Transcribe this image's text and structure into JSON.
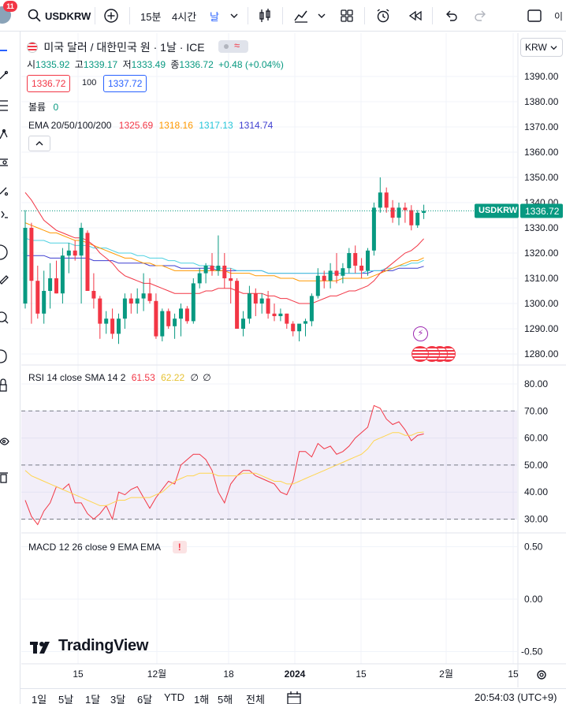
{
  "toolbar": {
    "notifications": "11",
    "symbol": "USDKRW",
    "interval_15m": "15분",
    "interval_4h": "4시간",
    "interval_day": "날",
    "corner": "이"
  },
  "legend": {
    "title": "미국 달러 / 대한민국 원 · 1날 · ICE",
    "open_label": "시",
    "open": "1335.92",
    "high_label": "고",
    "high": "1339.17",
    "low_label": "저",
    "low": "1333.49",
    "close_label": "종",
    "close": "1336.72",
    "change": "+0.48 (+0.04%)",
    "bid": "1336.72",
    "spread": "100",
    "ask": "1337.72",
    "volume_label": "볼륨",
    "volume_value": "0",
    "ema_label": "EMA 20/50/100/200",
    "ema20": "1325.69",
    "ema50": "1318.16",
    "ema100": "1317.13",
    "ema200": "1314.74"
  },
  "currency_select": "KRW",
  "price_tag": {
    "symbol": "USDKRW",
    "price": "1336.72"
  },
  "rsi": {
    "label": "RSI 14 close SMA 14 2",
    "rsi_value": "61.53",
    "sma_value": "62.22",
    "extra1": "∅",
    "extra2": "∅"
  },
  "macd": {
    "label": "MACD 12 26 close 9 EMA EMA",
    "warning": "!"
  },
  "watermark": "TradingView",
  "bottom": {
    "ranges": [
      "1일",
      "5날",
      "1달",
      "3달",
      "6달",
      "YTD",
      "1해",
      "5해",
      "전체"
    ],
    "clock": "20:54:03 (UTC+9)"
  },
  "colors": {
    "up": "#089981",
    "down": "#f23645",
    "ema20": "#f23645",
    "ema50": "#ff9800",
    "ema100": "#4dd0e1",
    "ema200": "#3f3fd0",
    "rsi": "#f23645",
    "rsi_sma": "#ffd54f",
    "rsi_band": "#7e57c2"
  },
  "chart_data": [
    {
      "type": "candlestick",
      "title": "미국 달러 / 대한민국 원 · 1날 · ICE",
      "y_ticks": [
        1390,
        1380,
        1370,
        1360,
        1350,
        1340,
        1330,
        1320,
        1310,
        1300,
        1290,
        1280
      ],
      "ylim": [
        1278,
        1397
      ],
      "x_ticks": [
        "15",
        "12월",
        "18",
        "2024",
        "15",
        "2월",
        "15"
      ],
      "last_price": 1336.72,
      "candles": [
        {
          "o": 1300,
          "h": 1337,
          "l": 1298,
          "c": 1330
        },
        {
          "o": 1330,
          "h": 1332,
          "l": 1292,
          "c": 1309
        },
        {
          "o": 1309,
          "h": 1315,
          "l": 1294,
          "c": 1296
        },
        {
          "o": 1296,
          "h": 1313,
          "l": 1292,
          "c": 1305
        },
        {
          "o": 1305,
          "h": 1316,
          "l": 1298,
          "c": 1310
        },
        {
          "o": 1310,
          "h": 1317,
          "l": 1304,
          "c": 1304
        },
        {
          "o": 1304,
          "h": 1322,
          "l": 1300,
          "c": 1319
        },
        {
          "o": 1319,
          "h": 1324,
          "l": 1312,
          "c": 1321
        },
        {
          "o": 1321,
          "h": 1325,
          "l": 1317,
          "c": 1319
        },
        {
          "o": 1319,
          "h": 1332,
          "l": 1300,
          "c": 1330
        },
        {
          "o": 1328,
          "h": 1329,
          "l": 1305,
          "c": 1305
        },
        {
          "o": 1305,
          "h": 1312,
          "l": 1298,
          "c": 1302
        },
        {
          "o": 1302,
          "h": 1303,
          "l": 1286,
          "c": 1292
        },
        {
          "o": 1292,
          "h": 1297,
          "l": 1288,
          "c": 1294
        },
        {
          "o": 1294,
          "h": 1298,
          "l": 1286,
          "c": 1288
        },
        {
          "o": 1288,
          "h": 1296,
          "l": 1284,
          "c": 1294
        },
        {
          "o": 1294,
          "h": 1304,
          "l": 1290,
          "c": 1302
        },
        {
          "o": 1302,
          "h": 1304,
          "l": 1296,
          "c": 1300
        },
        {
          "o": 1300,
          "h": 1306,
          "l": 1296,
          "c": 1302
        },
        {
          "o": 1302,
          "h": 1312,
          "l": 1297,
          "c": 1304
        },
        {
          "o": 1304,
          "h": 1310,
          "l": 1300,
          "c": 1301
        },
        {
          "o": 1301,
          "h": 1304,
          "l": 1286,
          "c": 1287
        },
        {
          "o": 1287,
          "h": 1298,
          "l": 1285,
          "c": 1297
        },
        {
          "o": 1297,
          "h": 1298,
          "l": 1290,
          "c": 1291
        },
        {
          "o": 1291,
          "h": 1296,
          "l": 1286,
          "c": 1294
        },
        {
          "o": 1294,
          "h": 1300,
          "l": 1287,
          "c": 1298
        },
        {
          "o": 1298,
          "h": 1299,
          "l": 1292,
          "c": 1293
        },
        {
          "o": 1293,
          "h": 1310,
          "l": 1292,
          "c": 1308
        },
        {
          "o": 1308,
          "h": 1314,
          "l": 1306,
          "c": 1312
        },
        {
          "o": 1312,
          "h": 1316,
          "l": 1308,
          "c": 1315
        },
        {
          "o": 1315,
          "h": 1320,
          "l": 1311,
          "c": 1313
        },
        {
          "o": 1313,
          "h": 1327,
          "l": 1311,
          "c": 1315
        },
        {
          "o": 1315,
          "h": 1320,
          "l": 1306,
          "c": 1310
        },
        {
          "o": 1310,
          "h": 1314,
          "l": 1300,
          "c": 1309
        },
        {
          "o": 1309,
          "h": 1310,
          "l": 1290,
          "c": 1290
        },
        {
          "o": 1290,
          "h": 1297,
          "l": 1287,
          "c": 1294
        },
        {
          "o": 1294,
          "h": 1307,
          "l": 1292,
          "c": 1304
        },
        {
          "o": 1304,
          "h": 1306,
          "l": 1295,
          "c": 1300
        },
        {
          "o": 1300,
          "h": 1304,
          "l": 1296,
          "c": 1302
        },
        {
          "o": 1302,
          "h": 1305,
          "l": 1294,
          "c": 1296
        },
        {
          "o": 1296,
          "h": 1300,
          "l": 1293,
          "c": 1295
        },
        {
          "o": 1295,
          "h": 1298,
          "l": 1293,
          "c": 1296
        },
        {
          "o": 1296,
          "h": 1296,
          "l": 1290,
          "c": 1292
        },
        {
          "o": 1292,
          "h": 1293,
          "l": 1287,
          "c": 1289
        },
        {
          "o": 1289,
          "h": 1291,
          "l": 1285,
          "c": 1292
        },
        {
          "o": 1292,
          "h": 1294,
          "l": 1287,
          "c": 1293
        },
        {
          "o": 1293,
          "h": 1304,
          "l": 1291,
          "c": 1303
        },
        {
          "o": 1303,
          "h": 1314,
          "l": 1302,
          "c": 1311
        },
        {
          "o": 1311,
          "h": 1313,
          "l": 1306,
          "c": 1309
        },
        {
          "o": 1309,
          "h": 1316,
          "l": 1306,
          "c": 1313
        },
        {
          "o": 1313,
          "h": 1320,
          "l": 1308,
          "c": 1311
        },
        {
          "o": 1311,
          "h": 1316,
          "l": 1308,
          "c": 1314
        },
        {
          "o": 1314,
          "h": 1322,
          "l": 1312,
          "c": 1320
        },
        {
          "o": 1320,
          "h": 1323,
          "l": 1312,
          "c": 1315
        },
        {
          "o": 1315,
          "h": 1318,
          "l": 1310,
          "c": 1313
        },
        {
          "o": 1313,
          "h": 1322,
          "l": 1311,
          "c": 1321
        },
        {
          "o": 1321,
          "h": 1340,
          "l": 1319,
          "c": 1338
        },
        {
          "o": 1338,
          "h": 1350,
          "l": 1336,
          "c": 1344
        },
        {
          "o": 1344,
          "h": 1346,
          "l": 1336,
          "c": 1338
        },
        {
          "o": 1338,
          "h": 1341,
          "l": 1332,
          "c": 1334
        },
        {
          "o": 1334,
          "h": 1340,
          "l": 1331,
          "c": 1338
        },
        {
          "o": 1338,
          "h": 1340,
          "l": 1332,
          "c": 1337
        },
        {
          "o": 1337,
          "h": 1339,
          "l": 1329,
          "c": 1331
        },
        {
          "o": 1331,
          "h": 1337,
          "l": 1330,
          "c": 1336
        },
        {
          "o": 1335.92,
          "h": 1339.17,
          "l": 1333.49,
          "c": 1336.72
        }
      ],
      "ema20": [
        1344,
        1341,
        1337,
        1333,
        1331,
        1329,
        1328,
        1327,
        1326,
        1326,
        1325,
        1323,
        1320,
        1318,
        1316,
        1313,
        1311,
        1310,
        1309,
        1308,
        1308,
        1307,
        1306,
        1305,
        1304,
        1304,
        1304,
        1304,
        1304,
        1305,
        1305,
        1306,
        1306,
        1306,
        1305,
        1304,
        1304,
        1304,
        1304,
        1303,
        1303,
        1302,
        1302,
        1301,
        1300,
        1300,
        1300,
        1301,
        1302,
        1303,
        1303,
        1304,
        1305,
        1305,
        1306,
        1307,
        1309,
        1312,
        1314,
        1316,
        1318,
        1320,
        1321,
        1323,
        1325.69
      ],
      "ema50": [
        1332,
        1331,
        1330,
        1329,
        1328,
        1328,
        1327,
        1326,
        1325,
        1325,
        1324,
        1323,
        1322,
        1321,
        1320,
        1319,
        1318,
        1318,
        1317,
        1316,
        1316,
        1315,
        1315,
        1314,
        1313,
        1313,
        1313,
        1313,
        1313,
        1313,
        1313,
        1313,
        1313,
        1312,
        1312,
        1312,
        1312,
        1311,
        1311,
        1311,
        1311,
        1310,
        1310,
        1310,
        1309,
        1309,
        1309,
        1309,
        1309,
        1309,
        1309,
        1310,
        1310,
        1310,
        1310,
        1310,
        1311,
        1312,
        1313,
        1314,
        1315,
        1316,
        1317,
        1317,
        1318.16
      ],
      "ema100": [
        1326,
        1325,
        1325,
        1325,
        1324,
        1324,
        1324,
        1324,
        1323,
        1323,
        1323,
        1322,
        1322,
        1322,
        1321,
        1320,
        1320,
        1320,
        1319,
        1319,
        1318,
        1318,
        1318,
        1317,
        1317,
        1316,
        1316,
        1316,
        1315,
        1315,
        1315,
        1314,
        1314,
        1314,
        1313,
        1313,
        1313,
        1313,
        1313,
        1312,
        1312,
        1312,
        1312,
        1312,
        1312,
        1312,
        1312,
        1312,
        1312,
        1312,
        1312,
        1312,
        1312,
        1312,
        1312,
        1313,
        1313,
        1313,
        1314,
        1314,
        1315,
        1315,
        1316,
        1316,
        1317.13
      ],
      "ema200": [
        1319,
        1319,
        1319,
        1319,
        1318,
        1318,
        1318,
        1318,
        1318,
        1318,
        1318,
        1317,
        1317,
        1317,
        1317,
        1316,
        1316,
        1316,
        1316,
        1316,
        1315,
        1315,
        1315,
        1315,
        1315,
        1314,
        1314,
        1314,
        1314,
        1314,
        1314,
        1313,
        1313,
        1313,
        1313,
        1313,
        1313,
        1313,
        1313,
        1312,
        1312,
        1312,
        1312,
        1312,
        1312,
        1312,
        1312,
        1312,
        1312,
        1312,
        1312,
        1312,
        1312,
        1312,
        1312,
        1312,
        1313,
        1313,
        1313,
        1313,
        1314,
        1314,
        1314,
        1314,
        1314.74
      ]
    },
    {
      "type": "line",
      "title": "RSI 14 close SMA 14 2",
      "y_ticks": [
        80,
        70,
        60,
        50,
        40,
        30
      ],
      "ylim": [
        25,
        85
      ],
      "band": [
        30,
        70
      ],
      "series": [
        {
          "name": "RSI",
          "values": [
            37,
            31,
            28,
            33,
            36,
            42,
            41,
            43,
            36,
            36,
            32,
            30,
            32,
            35,
            30,
            40,
            39,
            41,
            42,
            38,
            34,
            38,
            41,
            44,
            43,
            50,
            52,
            54,
            54,
            52,
            48,
            40,
            36,
            43,
            46,
            48,
            48,
            46,
            45,
            44,
            43,
            40,
            39,
            44,
            55,
            55,
            53,
            58,
            56,
            57,
            54,
            55,
            57,
            60,
            62,
            64,
            72,
            71,
            67,
            65,
            66,
            63,
            59,
            61,
            61.53
          ]
        },
        {
          "name": "SMA",
          "values": [
            48,
            46,
            45,
            44,
            43,
            42,
            41,
            40,
            39,
            38,
            37,
            36,
            35,
            35,
            36,
            37,
            37,
            38,
            38,
            38,
            38,
            39,
            40,
            42,
            44,
            45,
            46,
            46,
            47,
            47,
            47,
            46,
            46,
            46,
            46,
            47,
            47,
            47,
            46,
            45,
            44,
            44,
            43,
            43,
            44,
            45,
            46,
            47,
            48,
            49,
            50,
            51,
            52,
            53,
            54,
            56,
            59,
            60,
            61,
            62,
            62,
            61,
            61,
            62,
            62.22
          ]
        }
      ]
    },
    {
      "type": "line",
      "title": "MACD 12 26 close 9 EMA EMA",
      "y_ticks": [
        0.5,
        0.0,
        -0.5
      ],
      "ylim": [
        -0.6,
        0.6
      ],
      "series": []
    }
  ]
}
